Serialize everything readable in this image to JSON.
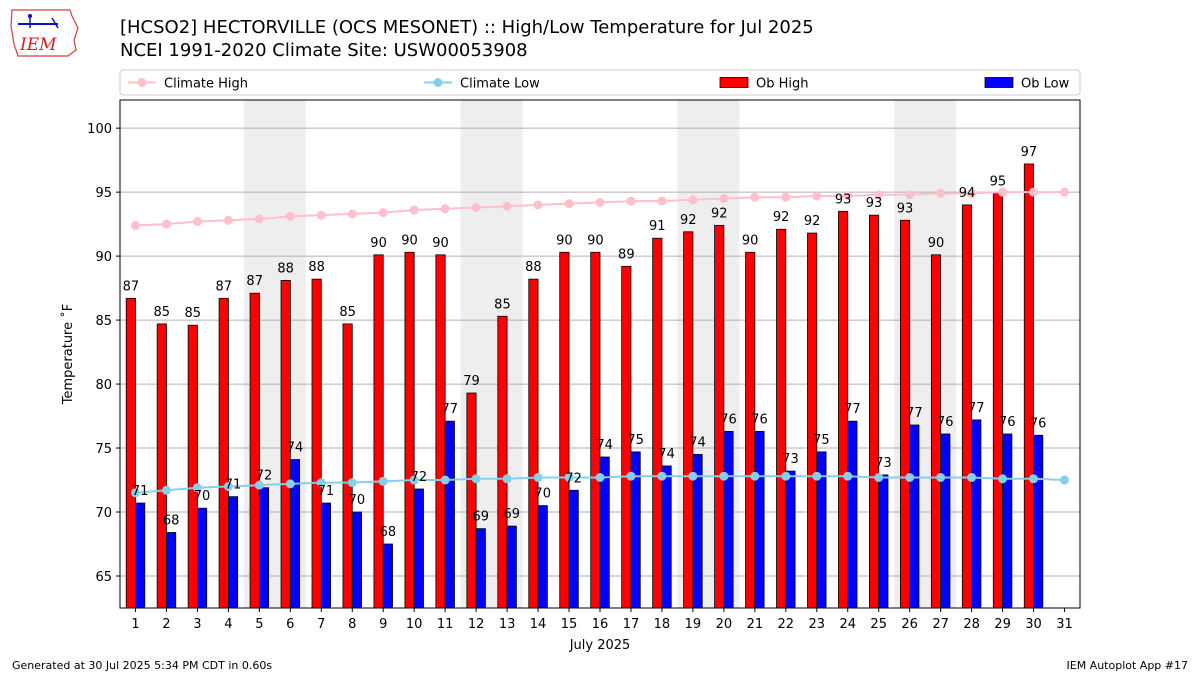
{
  "header": {
    "title_line1": "[HCSO2] HECTORVILLE (OCS MESONET) :: High/Low Temperature for Jul 2025",
    "title_line2": "NCEI 1991-2020 Climate Site: USW00053908",
    "logo_text": "IEM"
  },
  "footer": {
    "generated": "Generated at 30 Jul 2025 5:34 PM CDT in 0.60s",
    "app": "IEM Autoplot App #17"
  },
  "colors": {
    "ob_high": "#ff0000",
    "ob_low": "#0000ff",
    "climate_high": "#ffc0cb",
    "climate_low": "#87ceeb",
    "weekend_shade": "#eeeeee",
    "grid": "#b0b0b0"
  },
  "chart_data": {
    "type": "bar",
    "xlabel": "July 2025",
    "ylabel": "Temperature ˚F",
    "ylim": [
      62.5,
      102.2
    ],
    "yticks": [
      65,
      70,
      75,
      80,
      85,
      90,
      95,
      100
    ],
    "grid": "horizontal",
    "legend_position": "top",
    "categories": [
      1,
      2,
      3,
      4,
      5,
      6,
      7,
      8,
      9,
      10,
      11,
      12,
      13,
      14,
      15,
      16,
      17,
      18,
      19,
      20,
      21,
      22,
      23,
      24,
      25,
      26,
      27,
      28,
      29,
      30,
      31
    ],
    "shaded_days": [
      [
        5,
        6
      ],
      [
        12,
        13
      ],
      [
        19,
        20
      ],
      [
        26,
        27
      ]
    ],
    "series": [
      {
        "name": "Climate High",
        "kind": "line",
        "values": [
          92.4,
          92.5,
          92.7,
          92.8,
          92.9,
          93.1,
          93.2,
          93.3,
          93.4,
          93.6,
          93.7,
          93.8,
          93.9,
          94.0,
          94.1,
          94.2,
          94.3,
          94.3,
          94.4,
          94.5,
          94.6,
          94.6,
          94.7,
          94.7,
          94.8,
          94.8,
          94.9,
          94.9,
          95.0,
          95.0,
          95.0
        ]
      },
      {
        "name": "Climate Low",
        "kind": "line",
        "values": [
          71.5,
          71.7,
          71.9,
          72.0,
          72.1,
          72.2,
          72.3,
          72.3,
          72.4,
          72.5,
          72.5,
          72.6,
          72.6,
          72.7,
          72.7,
          72.7,
          72.8,
          72.8,
          72.8,
          72.8,
          72.8,
          72.8,
          72.8,
          72.8,
          72.7,
          72.7,
          72.7,
          72.7,
          72.6,
          72.6,
          72.5
        ]
      },
      {
        "name": "Ob High",
        "kind": "bar",
        "values": [
          86.7,
          84.7,
          84.6,
          86.7,
          87.1,
          88.1,
          88.2,
          84.7,
          90.1,
          90.3,
          90.1,
          79.3,
          85.3,
          88.2,
          90.3,
          90.3,
          89.2,
          91.4,
          91.9,
          92.4,
          90.3,
          92.1,
          91.8,
          93.5,
          93.2,
          92.8,
          90.1,
          94.0,
          94.9,
          97.2,
          null
        ],
        "labels": [
          "87",
          "85",
          "85",
          "87",
          "87",
          "88",
          "88",
          "85",
          "90",
          "90",
          "90",
          "79",
          "85",
          "88",
          "90",
          "90",
          "89",
          "91",
          "92",
          "92",
          "90",
          "92",
          "92",
          "93",
          "93",
          "93",
          "90",
          "94",
          "95",
          "97",
          ""
        ]
      },
      {
        "name": "Ob Low",
        "kind": "bar",
        "values": [
          70.7,
          68.4,
          70.3,
          71.2,
          71.9,
          74.1,
          70.7,
          70.0,
          67.5,
          71.8,
          77.1,
          68.7,
          68.9,
          70.5,
          71.7,
          74.3,
          74.7,
          73.6,
          74.5,
          76.3,
          76.3,
          73.2,
          74.7,
          77.1,
          72.9,
          76.8,
          76.1,
          77.2,
          76.1,
          76.0,
          null
        ],
        "labels": [
          "71",
          "68",
          "70",
          "71",
          "72",
          "74",
          "71",
          "70",
          "68",
          "72",
          "77",
          "69",
          "69",
          "70",
          "72",
          "74",
          "75",
          "74",
          "74",
          "76",
          "76",
          "73",
          "75",
          "77",
          "73",
          "77",
          "76",
          "77",
          "76",
          "76",
          ""
        ]
      }
    ]
  }
}
